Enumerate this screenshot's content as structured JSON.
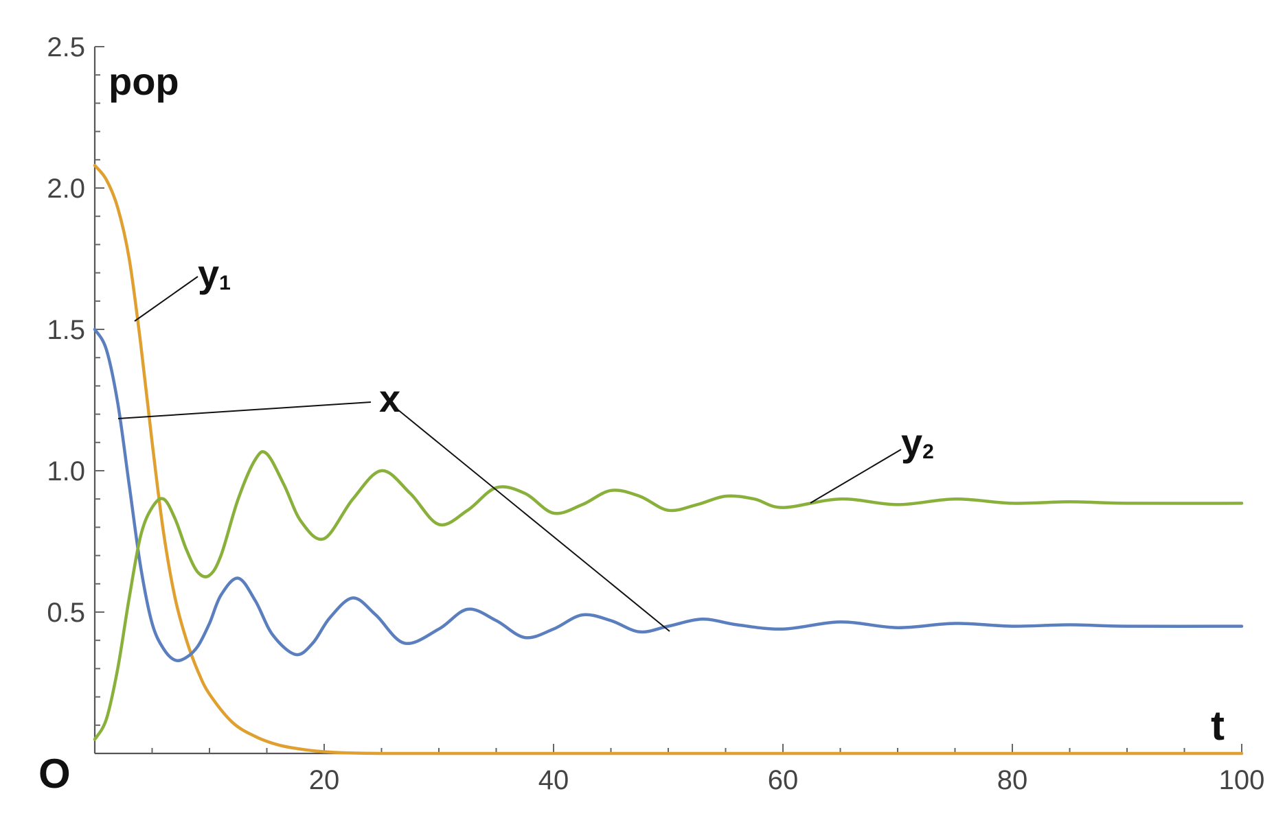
{
  "chart_data": {
    "type": "line",
    "title": "",
    "xlabel": "t",
    "ylabel": "pop",
    "origin_label": "O",
    "xlim": [
      0,
      100
    ],
    "ylim": [
      0,
      2.5
    ],
    "x_ticks": [
      20,
      40,
      60,
      80,
      100
    ],
    "x_tick_labels": [
      "20",
      "40",
      "60",
      "80",
      "100"
    ],
    "y_ticks": [
      0.5,
      1.0,
      1.5,
      2.0,
      2.5
    ],
    "y_tick_labels": [
      "0.5",
      "1.0",
      "1.5",
      "2.0",
      "2.5"
    ],
    "grid": false,
    "legend": "none",
    "series": [
      {
        "label_main": "y",
        "label_sub": "1",
        "color": "#e0a030",
        "x": [
          0,
          1,
          2,
          3,
          4,
          5,
          6,
          7,
          8,
          9,
          10,
          12,
          14,
          16,
          18,
          20,
          22,
          25,
          30,
          40,
          60,
          100
        ],
        "y": [
          2.08,
          2.03,
          1.93,
          1.75,
          1.45,
          1.1,
          0.78,
          0.55,
          0.4,
          0.29,
          0.21,
          0.11,
          0.06,
          0.03,
          0.015,
          0.006,
          0.002,
          0.0,
          0.0,
          0.0,
          0.0,
          0.0
        ]
      },
      {
        "label_main": "x",
        "label_sub": "",
        "color": "#5b7fbe",
        "x": [
          0,
          1,
          2,
          3,
          4,
          5,
          6,
          7,
          8,
          9,
          10,
          11,
          12.5,
          14,
          15.5,
          17.5,
          19,
          20.5,
          22.5,
          24.5,
          27,
          30,
          32.5,
          35,
          37.5,
          40,
          42.5,
          45,
          47.5,
          50,
          53,
          56,
          60,
          65,
          70,
          75,
          80,
          85,
          90,
          100
        ],
        "y": [
          1.5,
          1.43,
          1.24,
          0.95,
          0.66,
          0.46,
          0.37,
          0.33,
          0.34,
          0.38,
          0.46,
          0.56,
          0.62,
          0.54,
          0.42,
          0.35,
          0.39,
          0.48,
          0.55,
          0.49,
          0.39,
          0.44,
          0.51,
          0.47,
          0.41,
          0.44,
          0.49,
          0.47,
          0.43,
          0.45,
          0.475,
          0.455,
          0.44,
          0.465,
          0.445,
          0.46,
          0.45,
          0.455,
          0.45,
          0.45
        ]
      },
      {
        "label_main": "y",
        "label_sub": "2",
        "color": "#8ab03c",
        "x": [
          0,
          1,
          2,
          3,
          4,
          5,
          6,
          7,
          8,
          9,
          10,
          11,
          12.5,
          14,
          15,
          16.5,
          18,
          20,
          22.5,
          25,
          27.5,
          30,
          32.5,
          35,
          37.5,
          40,
          42.5,
          45,
          47.5,
          50,
          52.5,
          55,
          57.5,
          60,
          65,
          70,
          75,
          80,
          85,
          90,
          100
        ],
        "y": [
          0.05,
          0.12,
          0.3,
          0.55,
          0.77,
          0.87,
          0.9,
          0.83,
          0.72,
          0.64,
          0.63,
          0.7,
          0.9,
          1.04,
          1.06,
          0.95,
          0.82,
          0.76,
          0.9,
          1.0,
          0.92,
          0.81,
          0.86,
          0.94,
          0.92,
          0.85,
          0.88,
          0.93,
          0.91,
          0.86,
          0.88,
          0.91,
          0.9,
          0.87,
          0.9,
          0.88,
          0.9,
          0.885,
          0.89,
          0.885,
          0.885
        ]
      }
    ]
  }
}
